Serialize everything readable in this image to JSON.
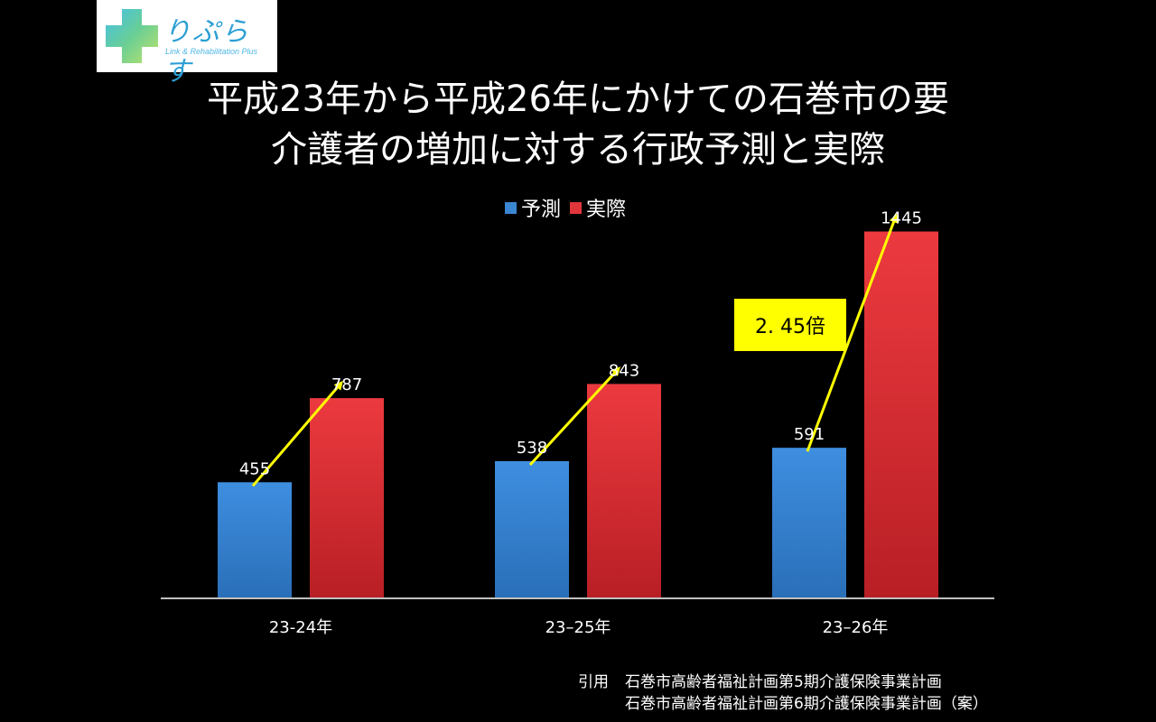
{
  "logo": {
    "name": "りぷらす",
    "subtitle": "Link & Rehabilitation Plus"
  },
  "title": {
    "line1": "平成23年から平成26年にかけての石巻市の要",
    "line2": "介護者の増加に対する行政予測と実際"
  },
  "colors": {
    "background": "#000000",
    "forecast": "#3a86d2",
    "actual": "#e0363b",
    "arrow": "#ffff00",
    "callout": "#ffff00"
  },
  "chart_data": {
    "type": "bar",
    "categories": [
      "23-24年",
      "23–25年",
      "23–26年"
    ],
    "series": [
      {
        "name": "予測",
        "values": [
          455,
          538,
          591
        ]
      },
      {
        "name": "実際",
        "values": [
          787,
          843,
          1445
        ]
      }
    ],
    "ylim": [
      0,
      1600
    ],
    "grid": false,
    "legend_position": "top",
    "annotation": "2. 45倍"
  },
  "source": {
    "label": "引用",
    "line1": "石巻市高齢者福祉計画第5期介護保険事業計画",
    "line2": "石巻市高齢者福祉計画第6期介護保険事業計画（案）"
  }
}
